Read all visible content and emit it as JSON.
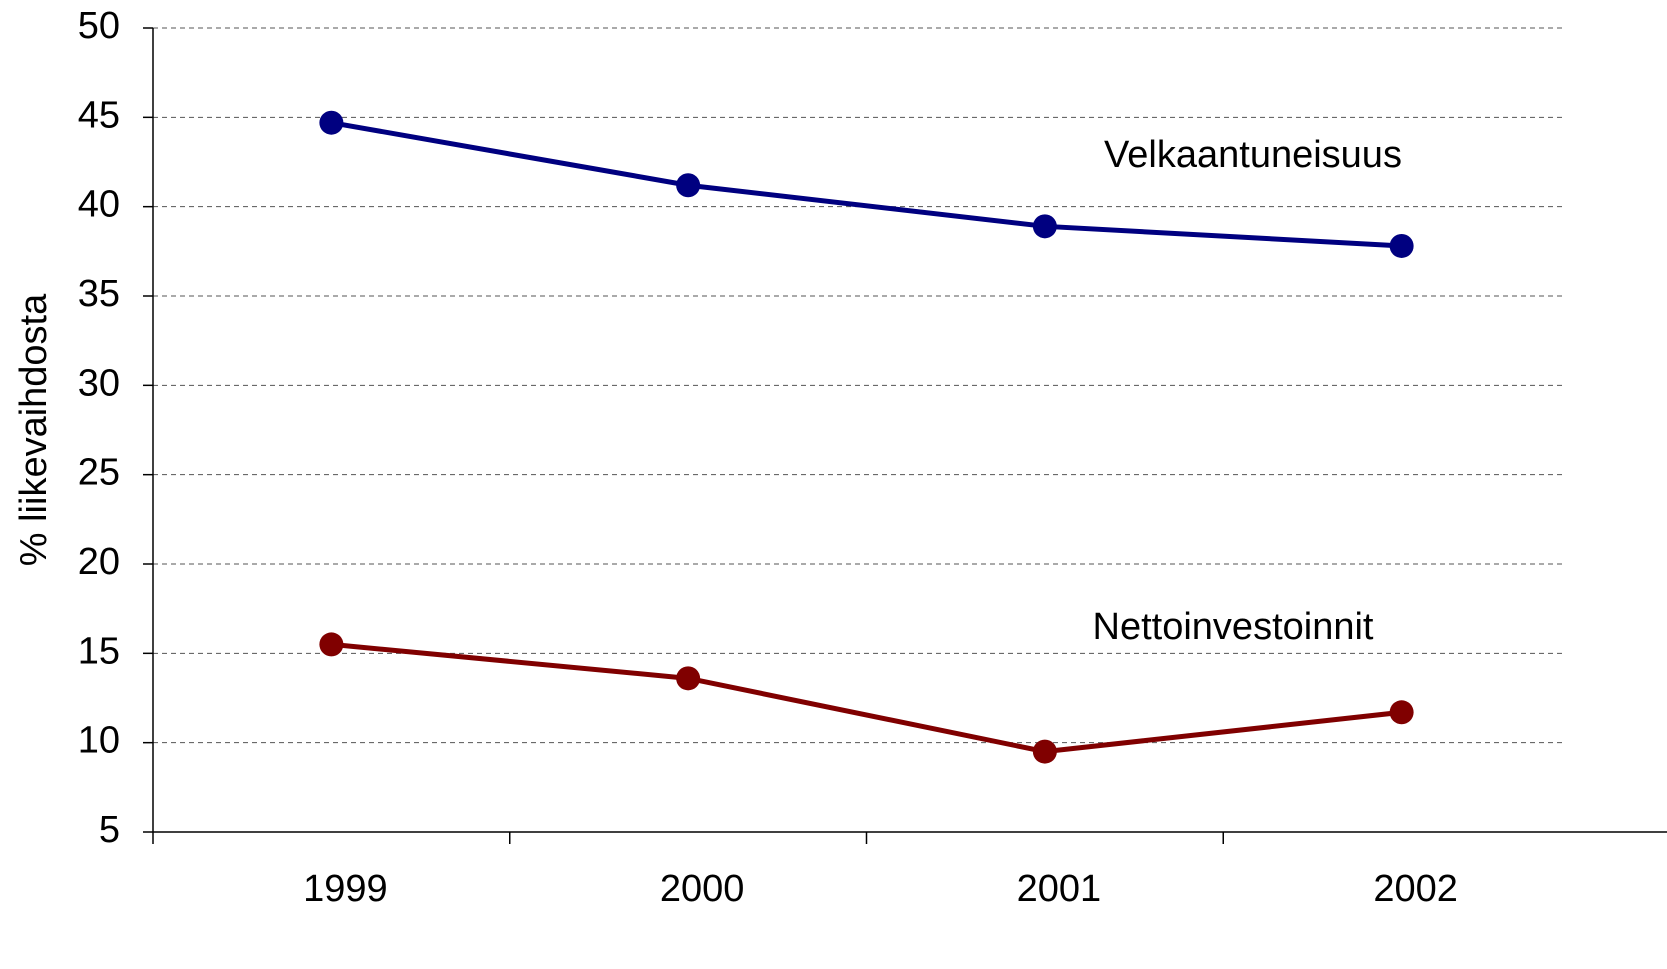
{
  "chart_data": {
    "type": "line",
    "y_label": "% liikevaihdosta",
    "categories": [
      "1999",
      "2000",
      "2001",
      "2002"
    ],
    "series": [
      {
        "name": "Velkaantuneisuus",
        "color": "#000080",
        "values": [
          44.7,
          41.2,
          38.9,
          37.8
        ]
      },
      {
        "name": "Nettoinvestoinnit",
        "color": "#800000",
        "values": [
          15.5,
          13.6,
          9.5,
          11.7
        ]
      }
    ],
    "ylim": [
      5,
      50
    ],
    "yticks": [
      5,
      10,
      15,
      20,
      25,
      30,
      35,
      40,
      45,
      50
    ],
    "grid": true
  }
}
